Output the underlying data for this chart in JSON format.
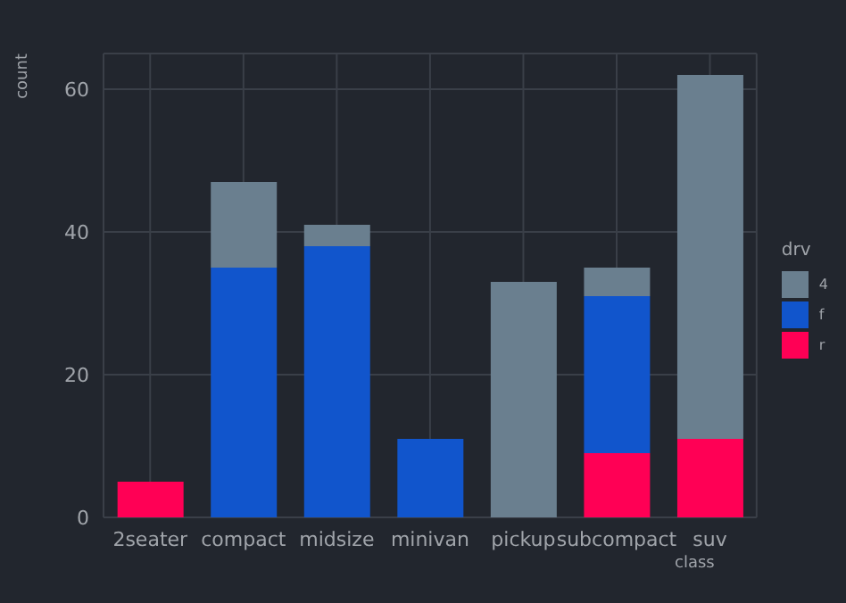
{
  "chart_data": {
    "type": "bar",
    "stacked": true,
    "xlabel": "class",
    "ylabel": "count",
    "legend_title": "drv",
    "categories": [
      "2seater",
      "compact",
      "midsize",
      "minivan",
      "pickup",
      "subcompact",
      "suv"
    ],
    "series": [
      {
        "name": "r",
        "color": "#ff0055",
        "values": [
          5,
          0,
          0,
          0,
          0,
          9,
          11
        ]
      },
      {
        "name": "f",
        "color": "#1155cc",
        "values": [
          0,
          35,
          38,
          11,
          0,
          22,
          0
        ]
      },
      {
        "name": "4",
        "color": "#6a7f8f",
        "values": [
          0,
          12,
          3,
          0,
          33,
          4,
          51
        ]
      }
    ],
    "ylim": [
      0,
      65
    ],
    "yticks": [
      0,
      20,
      40,
      60
    ],
    "grid": true,
    "legend": "right"
  }
}
